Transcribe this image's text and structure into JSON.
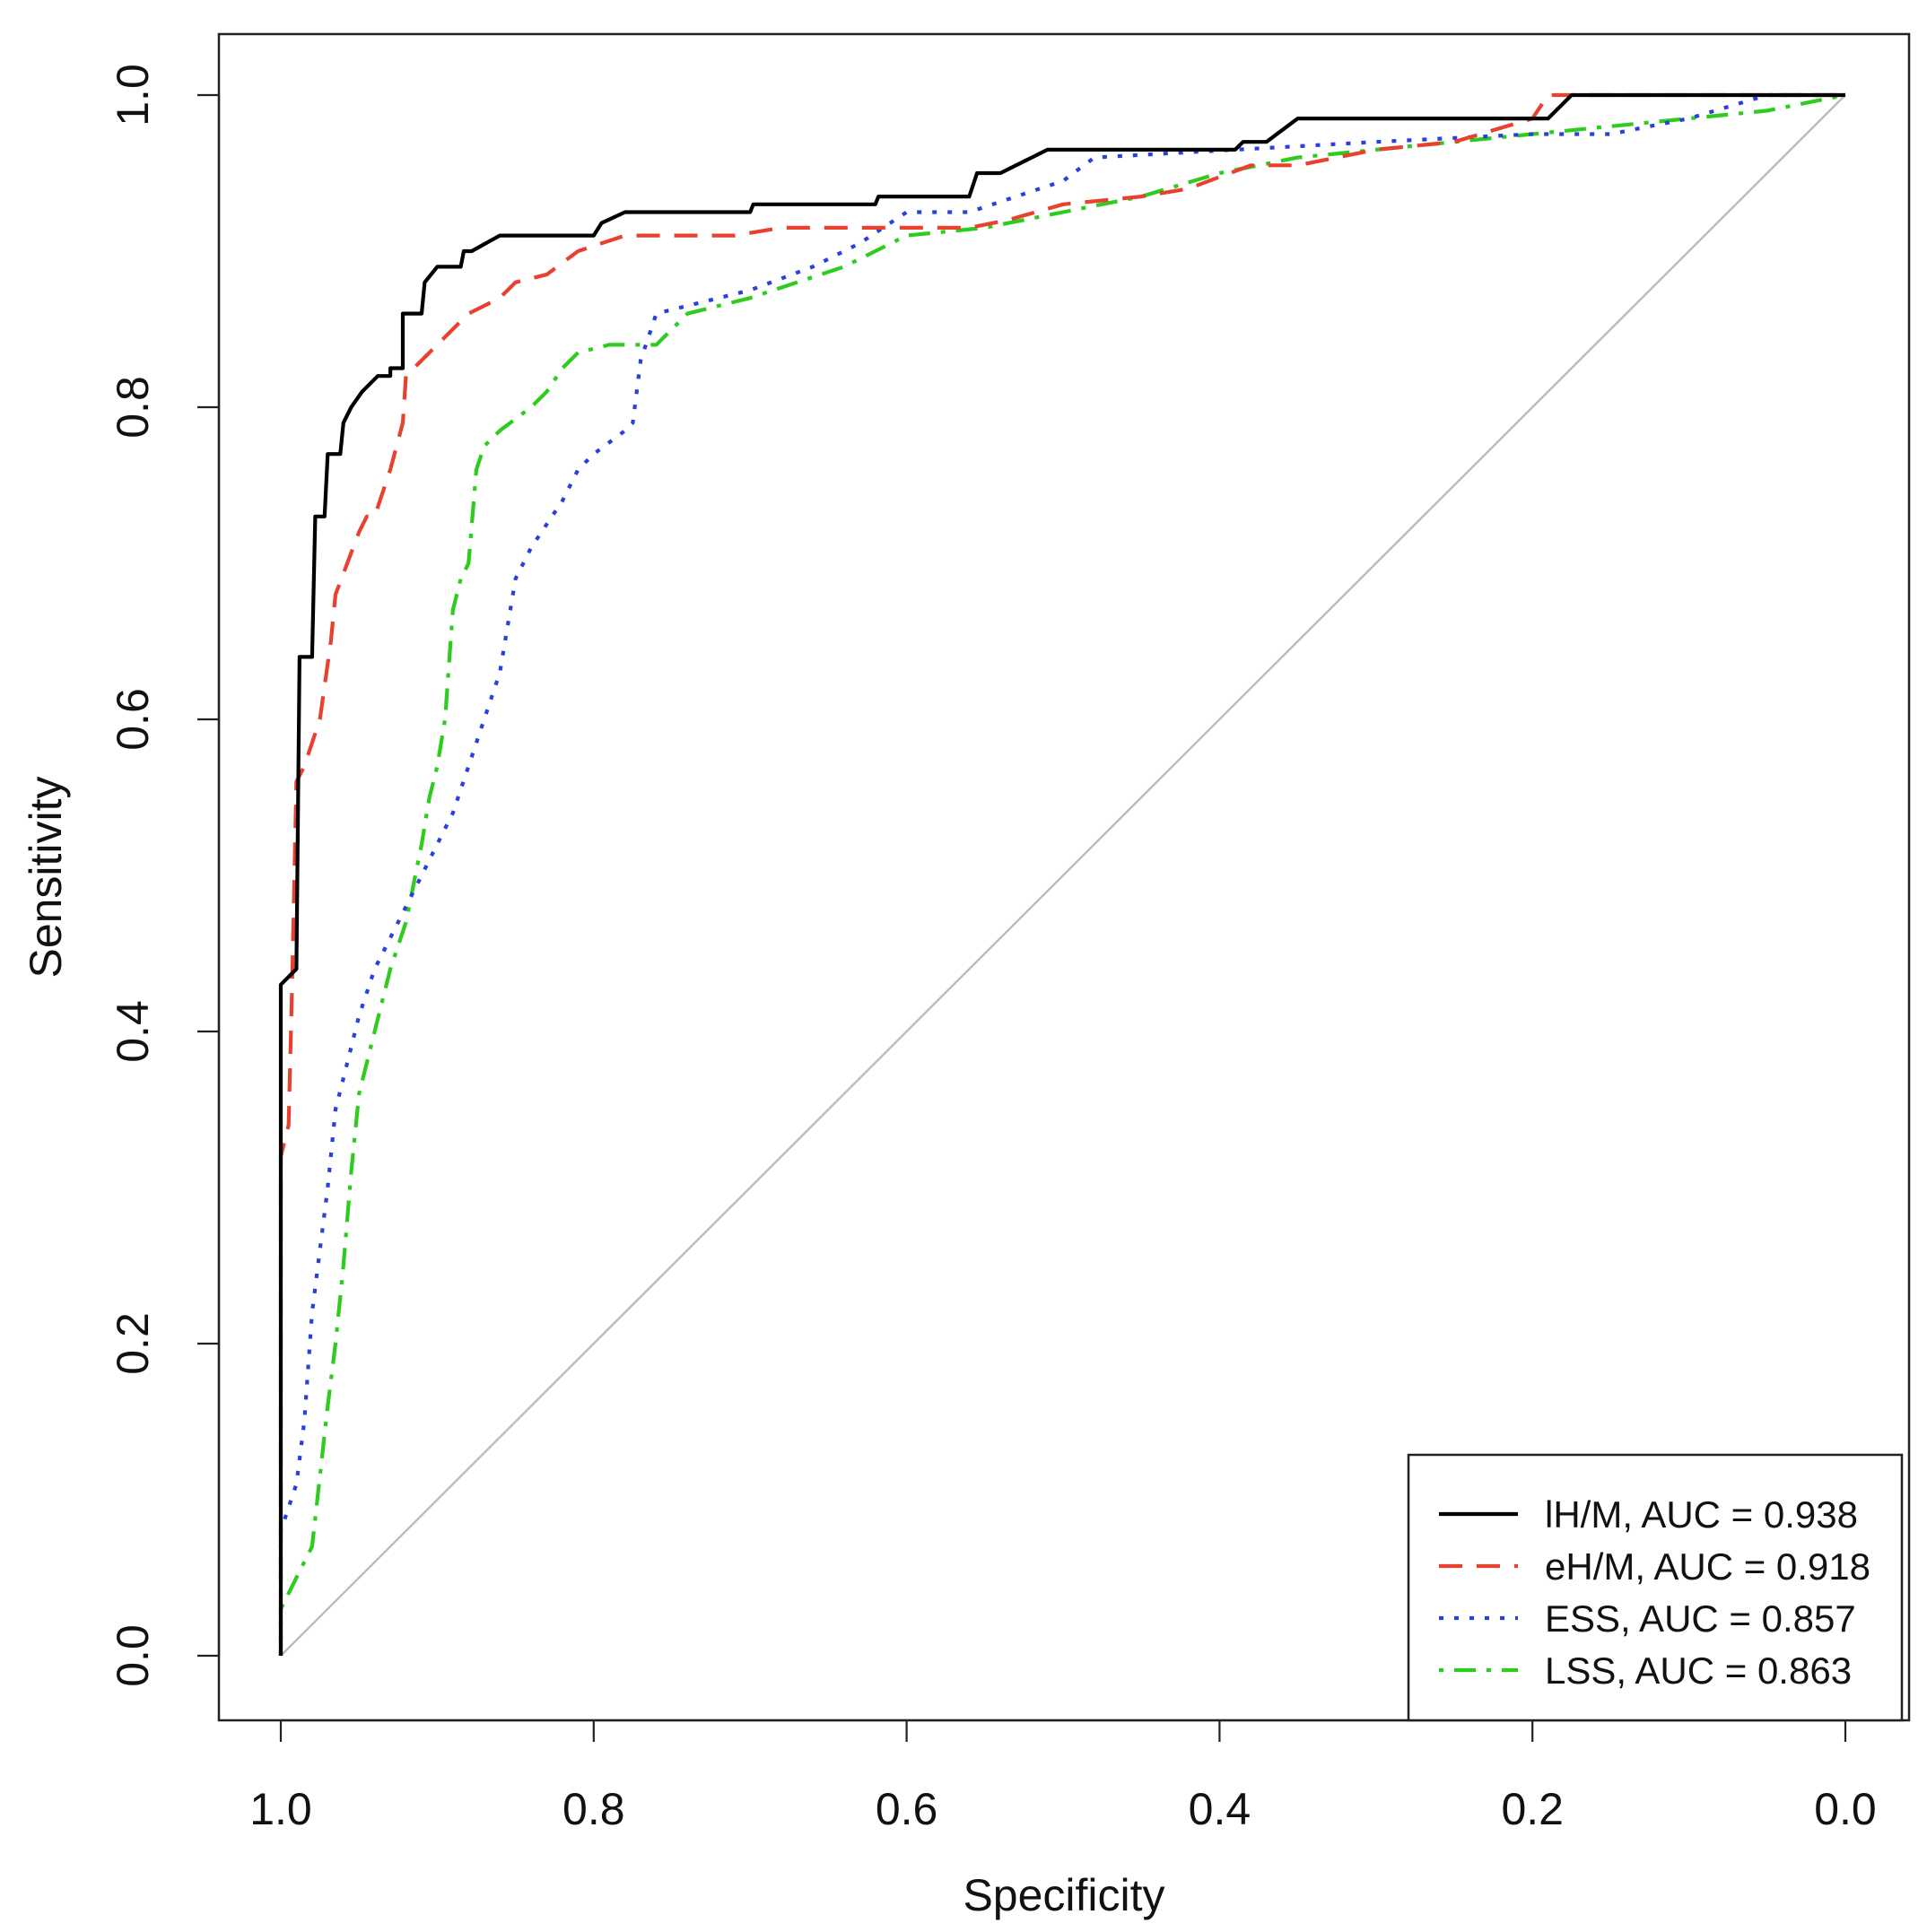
{
  "chart_data": {
    "type": "line",
    "title": "",
    "xlabel": "Specificity",
    "ylabel": "Sensitivity",
    "xlim": [
      1.0,
      0.0
    ],
    "ylim": [
      0.0,
      1.0
    ],
    "x_reversed": true,
    "x_ticks": [
      "1.0",
      "0.8",
      "0.6",
      "0.4",
      "0.2",
      "0.0"
    ],
    "x_tick_values": [
      1.0,
      0.8,
      0.6,
      0.4,
      0.2,
      0.0
    ],
    "y_ticks": [
      "0.0",
      "0.2",
      "0.4",
      "0.6",
      "0.8",
      "1.0"
    ],
    "y_tick_values": [
      0.0,
      0.2,
      0.4,
      0.6,
      0.8,
      1.0
    ],
    "grid": false,
    "legend_position": "bottom-right",
    "reference_line": {
      "from": [
        1.0,
        0.0
      ],
      "to": [
        0.0,
        1.0
      ],
      "color": "#bbbbbb"
    },
    "series": [
      {
        "name": "lH/M",
        "legend_label": "lH/M, AUC = 0.938",
        "auc": 0.938,
        "color": "#000000",
        "dash": "solid",
        "points": [
          [
            1.0,
            0.0
          ],
          [
            1.0,
            0.43
          ],
          [
            0.99,
            0.44
          ],
          [
            0.988,
            0.64
          ],
          [
            0.98,
            0.64
          ],
          [
            0.978,
            0.73
          ],
          [
            0.972,
            0.73
          ],
          [
            0.97,
            0.77
          ],
          [
            0.962,
            0.77
          ],
          [
            0.96,
            0.79
          ],
          [
            0.955,
            0.8
          ],
          [
            0.948,
            0.81
          ],
          [
            0.938,
            0.82
          ],
          [
            0.93,
            0.82
          ],
          [
            0.93,
            0.825
          ],
          [
            0.922,
            0.825
          ],
          [
            0.922,
            0.86
          ],
          [
            0.91,
            0.86
          ],
          [
            0.908,
            0.88
          ],
          [
            0.9,
            0.89
          ],
          [
            0.885,
            0.89
          ],
          [
            0.883,
            0.9
          ],
          [
            0.878,
            0.9
          ],
          [
            0.86,
            0.91
          ],
          [
            0.8,
            0.91
          ],
          [
            0.795,
            0.918
          ],
          [
            0.78,
            0.925
          ],
          [
            0.7,
            0.925
          ],
          [
            0.698,
            0.93
          ],
          [
            0.62,
            0.93
          ],
          [
            0.618,
            0.935
          ],
          [
            0.56,
            0.935
          ],
          [
            0.555,
            0.95
          ],
          [
            0.54,
            0.95
          ],
          [
            0.52,
            0.96
          ],
          [
            0.51,
            0.965
          ],
          [
            0.39,
            0.965
          ],
          [
            0.385,
            0.97
          ],
          [
            0.37,
            0.97
          ],
          [
            0.35,
            0.985
          ],
          [
            0.19,
            0.985
          ],
          [
            0.18,
            0.995
          ],
          [
            0.175,
            1.0
          ],
          [
            0.0,
            1.0
          ]
        ]
      },
      {
        "name": "eH/M",
        "legend_label": "eH/M, AUC = 0.918",
        "auc": 0.918,
        "color": "#e8412f",
        "dash": "dashed",
        "points": [
          [
            1.0,
            0.0
          ],
          [
            1.0,
            0.32
          ],
          [
            0.995,
            0.34
          ],
          [
            0.993,
            0.42
          ],
          [
            0.99,
            0.56
          ],
          [
            0.985,
            0.57
          ],
          [
            0.975,
            0.6
          ],
          [
            0.968,
            0.65
          ],
          [
            0.965,
            0.68
          ],
          [
            0.95,
            0.72
          ],
          [
            0.945,
            0.73
          ],
          [
            0.94,
            0.73
          ],
          [
            0.93,
            0.76
          ],
          [
            0.922,
            0.79
          ],
          [
            0.92,
            0.82
          ],
          [
            0.91,
            0.83
          ],
          [
            0.9,
            0.84
          ],
          [
            0.89,
            0.85
          ],
          [
            0.88,
            0.86
          ],
          [
            0.86,
            0.87
          ],
          [
            0.85,
            0.88
          ],
          [
            0.83,
            0.885
          ],
          [
            0.81,
            0.9
          ],
          [
            0.78,
            0.91
          ],
          [
            0.71,
            0.91
          ],
          [
            0.68,
            0.915
          ],
          [
            0.65,
            0.915
          ],
          [
            0.6,
            0.915
          ],
          [
            0.56,
            0.915
          ],
          [
            0.535,
            0.92
          ],
          [
            0.5,
            0.93
          ],
          [
            0.45,
            0.935
          ],
          [
            0.42,
            0.94
          ],
          [
            0.38,
            0.955
          ],
          [
            0.35,
            0.955
          ],
          [
            0.3,
            0.965
          ],
          [
            0.25,
            0.97
          ],
          [
            0.2,
            0.985
          ],
          [
            0.19,
            1.0
          ],
          [
            0.0,
            1.0
          ]
        ]
      },
      {
        "name": "ESS",
        "legend_label": "ESS, AUC = 0.857",
        "auc": 0.857,
        "color": "#2b3fdc",
        "dash": "dotted",
        "points": [
          [
            1.0,
            0.0
          ],
          [
            1.0,
            0.08
          ],
          [
            0.99,
            0.11
          ],
          [
            0.985,
            0.15
          ],
          [
            0.98,
            0.22
          ],
          [
            0.975,
            0.26
          ],
          [
            0.97,
            0.3
          ],
          [
            0.965,
            0.35
          ],
          [
            0.96,
            0.37
          ],
          [
            0.95,
            0.41
          ],
          [
            0.94,
            0.44
          ],
          [
            0.93,
            0.46
          ],
          [
            0.92,
            0.48
          ],
          [
            0.91,
            0.5
          ],
          [
            0.9,
            0.52
          ],
          [
            0.89,
            0.54
          ],
          [
            0.88,
            0.57
          ],
          [
            0.87,
            0.6
          ],
          [
            0.86,
            0.63
          ],
          [
            0.855,
            0.66
          ],
          [
            0.85,
            0.69
          ],
          [
            0.84,
            0.71
          ],
          [
            0.82,
            0.74
          ],
          [
            0.81,
            0.76
          ],
          [
            0.8,
            0.77
          ],
          [
            0.78,
            0.785
          ],
          [
            0.775,
            0.79
          ],
          [
            0.77,
            0.83
          ],
          [
            0.76,
            0.86
          ],
          [
            0.7,
            0.875
          ],
          [
            0.66,
            0.89
          ],
          [
            0.63,
            0.905
          ],
          [
            0.6,
            0.925
          ],
          [
            0.56,
            0.925
          ],
          [
            0.53,
            0.935
          ],
          [
            0.5,
            0.945
          ],
          [
            0.48,
            0.96
          ],
          [
            0.3,
            0.97
          ],
          [
            0.2,
            0.975
          ],
          [
            0.15,
            0.975
          ],
          [
            0.1,
            0.985
          ],
          [
            0.05,
            1.0
          ],
          [
            0.0,
            1.0
          ]
        ]
      },
      {
        "name": "LSS",
        "legend_label": "LSS, AUC = 0.863",
        "auc": 0.863,
        "color": "#2ecc1f",
        "dash": "dashdot",
        "points": [
          [
            1.0,
            0.0
          ],
          [
            1.0,
            0.03
          ],
          [
            0.99,
            0.05
          ],
          [
            0.98,
            0.07
          ],
          [
            0.97,
            0.16
          ],
          [
            0.965,
            0.2
          ],
          [
            0.96,
            0.25
          ],
          [
            0.955,
            0.31
          ],
          [
            0.95,
            0.36
          ],
          [
            0.94,
            0.4
          ],
          [
            0.93,
            0.44
          ],
          [
            0.92,
            0.47
          ],
          [
            0.91,
            0.52
          ],
          [
            0.905,
            0.55
          ],
          [
            0.9,
            0.57
          ],
          [
            0.895,
            0.6
          ],
          [
            0.89,
            0.67
          ],
          [
            0.885,
            0.69
          ],
          [
            0.88,
            0.7
          ],
          [
            0.875,
            0.76
          ],
          [
            0.87,
            0.775
          ],
          [
            0.86,
            0.785
          ],
          [
            0.84,
            0.8
          ],
          [
            0.83,
            0.81
          ],
          [
            0.82,
            0.825
          ],
          [
            0.81,
            0.835
          ],
          [
            0.79,
            0.84
          ],
          [
            0.76,
            0.84
          ],
          [
            0.74,
            0.86
          ],
          [
            0.7,
            0.87
          ],
          [
            0.64,
            0.89
          ],
          [
            0.6,
            0.91
          ],
          [
            0.55,
            0.915
          ],
          [
            0.5,
            0.925
          ],
          [
            0.45,
            0.935
          ],
          [
            0.4,
            0.95
          ],
          [
            0.35,
            0.96
          ],
          [
            0.3,
            0.965
          ],
          [
            0.2,
            0.975
          ],
          [
            0.1,
            0.985
          ],
          [
            0.05,
            0.99
          ],
          [
            0.0,
            1.0
          ]
        ]
      }
    ]
  }
}
